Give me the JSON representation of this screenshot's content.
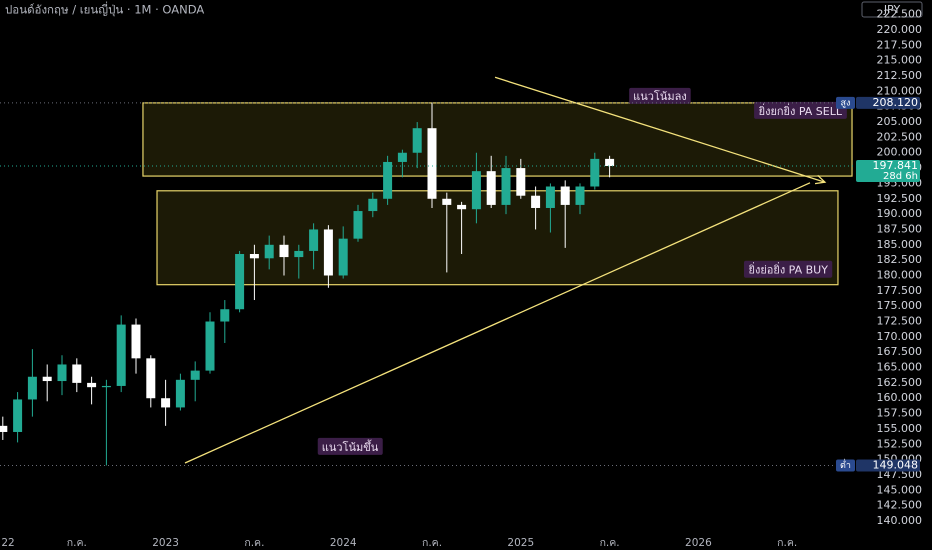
{
  "chart_data": {
    "type": "candlestick",
    "title": "ปอนด์อังกฤษ / เยนญี่ปุ่น · 1M · OANDA",
    "currency": "JPY",
    "grid": false,
    "categories": [
      "22",
      null,
      null,
      null,
      null,
      null,
      "ก.ค.",
      null,
      null,
      null,
      null,
      null,
      "2023",
      null,
      null,
      null,
      null,
      null,
      "ก.ค.",
      null,
      null,
      null,
      null,
      null,
      "2024",
      null,
      null,
      null,
      null,
      null,
      "ก.ค.",
      null,
      null,
      null,
      null,
      null,
      "2025",
      null,
      null,
      null,
      null,
      null,
      "ก.ค.",
      null,
      null,
      null,
      null,
      null,
      "2026",
      null,
      null,
      null,
      null,
      null,
      "ก.ค."
    ],
    "up_color": "#22ab94",
    "down_color": "#ffffff",
    "open": [
      null,
      155.5,
      154.5,
      159.8,
      163.5,
      162.8,
      165.5,
      162.5,
      161.8,
      162.0,
      172.0,
      166.5,
      160.0,
      158.5,
      163.0,
      164.5,
      172.5,
      174.5,
      183.5,
      182.8,
      185.0,
      183.0,
      184.0,
      187.5,
      180.0,
      186.0,
      190.5,
      192.5,
      198.5,
      200.0,
      204.0,
      192.5,
      191.5,
      190.8,
      197.0,
      191.5,
      197.5,
      193.0,
      191.0,
      194.5,
      191.5,
      194.5,
      199.0,
      null,
      null,
      null,
      null,
      null,
      null,
      null,
      null,
      null,
      null,
      null,
      null
    ],
    "high": [
      null,
      157.0,
      161.0,
      168.0,
      165.5,
      167.0,
      166.5,
      163.5,
      163.0,
      173.5,
      173.0,
      167.0,
      163.0,
      164.0,
      166.0,
      174.0,
      176.0,
      184.0,
      185.0,
      186.5,
      186.5,
      185.0,
      188.5,
      188.2,
      188.0,
      191.5,
      193.5,
      199.5,
      200.5,
      205.0,
      208.12,
      193.5,
      192.0,
      200.0,
      199.5,
      199.5,
      199.0,
      194.5,
      195.0,
      195.5,
      195.0,
      200.0,
      199.5,
      null,
      null,
      null,
      null,
      null,
      null,
      null,
      null,
      null,
      null,
      null,
      null
    ],
    "low": [
      null,
      153.2,
      152.8,
      157.0,
      159.5,
      160.5,
      161.0,
      159.0,
      149.048,
      161.0,
      164.0,
      158.5,
      155.5,
      158.0,
      159.5,
      164.0,
      169.0,
      174.0,
      176.0,
      181.0,
      180.0,
      179.5,
      181.0,
      178.0,
      179.5,
      185.5,
      189.5,
      191.5,
      196.0,
      197.5,
      191.0,
      180.5,
      183.5,
      188.5,
      191.0,
      190.0,
      192.5,
      187.5,
      187.0,
      184.5,
      190.0,
      194.0,
      196.0,
      null,
      null,
      null,
      null,
      null,
      null,
      null,
      null,
      null,
      null,
      null,
      null
    ],
    "close": [
      null,
      154.5,
      159.8,
      163.5,
      162.8,
      165.5,
      162.5,
      161.8,
      162.0,
      172.0,
      166.5,
      160.0,
      158.5,
      163.0,
      164.5,
      172.5,
      174.5,
      183.5,
      182.8,
      185.0,
      183.0,
      184.0,
      187.5,
      180.0,
      186.0,
      190.5,
      192.5,
      198.5,
      200.0,
      204.0,
      192.5,
      191.5,
      190.8,
      197.0,
      191.5,
      197.5,
      193.0,
      191.0,
      194.5,
      191.5,
      194.5,
      199.0,
      197.841,
      null,
      null,
      null,
      null,
      null,
      null,
      null,
      null,
      null,
      null,
      null,
      null
    ],
    "ylim": [
      137.55,
      224.89
    ],
    "yticks": [
      {
        "value": 140,
        "label": "140.000"
      },
      {
        "value": 142.5,
        "label": "142.500"
      },
      {
        "value": 145,
        "label": "145.000"
      },
      {
        "value": 147.5,
        "label": "147.500"
      },
      {
        "value": 150,
        "label": "150.000"
      },
      {
        "value": 152.5,
        "label": "152.500"
      },
      {
        "value": 155,
        "label": "155.000"
      },
      {
        "value": 157.5,
        "label": "157.500"
      },
      {
        "value": 160,
        "label": "160.000"
      },
      {
        "value": 162.5,
        "label": "162.500"
      },
      {
        "value": 165,
        "label": "165.000"
      },
      {
        "value": 167.5,
        "label": "167.500"
      },
      {
        "value": 170,
        "label": "170.000"
      },
      {
        "value": 172.5,
        "label": "172.500"
      },
      {
        "value": 175,
        "label": "175.000"
      },
      {
        "value": 177.5,
        "label": "177.500"
      },
      {
        "value": 180,
        "label": "180.000"
      },
      {
        "value": 182.5,
        "label": "182.500"
      },
      {
        "value": 185,
        "label": "185.000"
      },
      {
        "value": 187.5,
        "label": "187.500"
      },
      {
        "value": 190,
        "label": "190.000"
      },
      {
        "value": 192.5,
        "label": "192.500"
      },
      {
        "value": 195,
        "label": "195.000"
      },
      {
        "value": 197.5,
        "label": "197.500"
      },
      {
        "value": 200,
        "label": "200.000"
      },
      {
        "value": 202.5,
        "label": "202.500"
      },
      {
        "value": 205,
        "label": "205.000"
      },
      {
        "value": 207.5,
        "label": "207.500"
      },
      {
        "value": 210,
        "label": "210.000"
      },
      {
        "value": 212.5,
        "label": "212.500"
      },
      {
        "value": 215,
        "label": "215.000"
      },
      {
        "value": 217.5,
        "label": "217.500"
      },
      {
        "value": 220,
        "label": "220.000"
      },
      {
        "value": 222.5,
        "label": "222.500"
      }
    ],
    "zones": [
      {
        "label": "ยิ่งยกยิ่ง PA SELL",
        "low": 196.2,
        "high": 208.12,
        "start": 10.47,
        "end": 58.38,
        "label_corner": "top-right"
      },
      {
        "label": "ยิ่งย่อยิ่ง PA BUY",
        "low": 178.5,
        "high": 193.8,
        "start": 11.42,
        "end": 57.43,
        "label_corner": "bottom-right"
      }
    ],
    "trendlines": [
      {
        "label": "แนวโน้มลง",
        "x": [
          34.26,
          56.55
        ],
        "y": [
          212.3,
          195.2
        ],
        "arrow": true,
        "label_at": [
          45.4,
          209.1
        ]
      },
      {
        "label": "แนวโน้มขึ้น",
        "x": [
          13.31,
          55.54
        ],
        "y": [
          149.45,
          195.1
        ],
        "arrow": false,
        "label_at": [
          24.46,
          151.9
        ]
      }
    ],
    "price_badges": [
      {
        "tag": "สูง",
        "value": 208.12,
        "label": "208.120"
      },
      {
        "value": 197.841,
        "label": "197.841",
        "countdown": "28d 6h"
      },
      {
        "tag": "ต่ำ",
        "value": 149.048,
        "label": "149.048"
      }
    ]
  }
}
